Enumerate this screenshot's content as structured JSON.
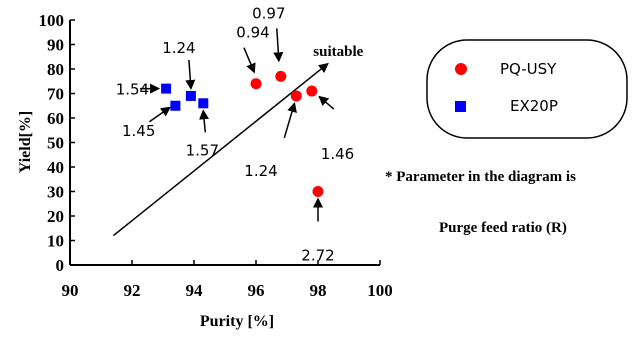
{
  "chart_data": {
    "type": "scatter",
    "xlabel": "Purity [%]",
    "ylabel": "Yield[%]",
    "xlim": [
      90,
      100
    ],
    "ylim": [
      0,
      100
    ],
    "x_ticks": [
      90,
      92,
      94,
      96,
      98,
      100
    ],
    "y_ticks": [
      0,
      10,
      20,
      30,
      40,
      50,
      60,
      70,
      80,
      90,
      100
    ],
    "grid": false,
    "legend_position": "right",
    "series": [
      {
        "name": "PQ-USY",
        "marker": "circle",
        "color": "#ff0000",
        "points": [
          {
            "x": 96.0,
            "y": 74,
            "label": "0.94"
          },
          {
            "x": 96.8,
            "y": 77,
            "label": "0.97"
          },
          {
            "x": 97.3,
            "y": 69,
            "label": "1.24"
          },
          {
            "x": 97.8,
            "y": 71,
            "label": "1.46"
          },
          {
            "x": 98.0,
            "y": 30,
            "label": "2.72"
          }
        ]
      },
      {
        "name": "EX20P",
        "marker": "square",
        "color": "#0000ff",
        "points": [
          {
            "x": 93.1,
            "y": 72,
            "label": "1.54"
          },
          {
            "x": 93.4,
            "y": 65,
            "label": "1.45"
          },
          {
            "x": 93.9,
            "y": 69,
            "label": "1.24"
          },
          {
            "x": 94.3,
            "y": 66,
            "label": "1.57"
          }
        ]
      }
    ],
    "trend_arrow": {
      "from": [
        91.4,
        12
      ],
      "to": [
        98.3,
        82
      ],
      "label": "suitable"
    },
    "note": {
      "line1": "* Parameter in the diagram is",
      "line2": "Purge feed ratio (R)"
    }
  }
}
